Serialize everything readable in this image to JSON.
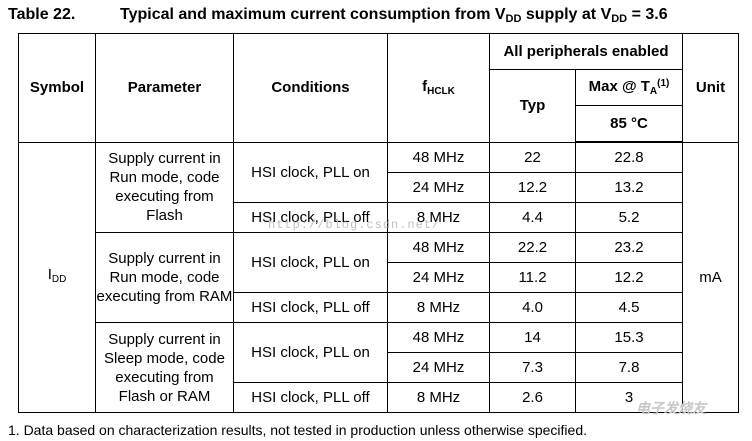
{
  "title": {
    "table_number": "Table 22.",
    "text_main": "Typical and maximum current consumption from V",
    "text_sub1": "DD",
    "text_mid": " supply at V",
    "text_sub2": "DD",
    "text_end": " = 3.6"
  },
  "headers": {
    "symbol": "Symbol",
    "parameter": "Parameter",
    "conditions": "Conditions",
    "fhclk_main": "f",
    "fhclk_sub": "HCLK",
    "all_peripherals": "All peripherals enabled",
    "typ": "Typ",
    "max_main": "Max @ T",
    "max_sub": "A",
    "max_sup": "(1)",
    "temp": "85 °C",
    "unit": "Unit"
  },
  "symbol": {
    "main": "I",
    "sub": "DD"
  },
  "unit": "mA",
  "groups": [
    {
      "parameter": "Supply current in Run mode, code executing from Flash",
      "rows": [
        {
          "conditions": "HSI clock, PLL on",
          "freq": "48 MHz",
          "typ": "22",
          "max": "22.8"
        },
        {
          "conditions": "HSI clock, PLL on",
          "freq": "24 MHz",
          "typ": "12.2",
          "max": "13.2"
        },
        {
          "conditions": "HSI clock, PLL off",
          "freq": "8 MHz",
          "typ": "4.4",
          "max": "5.2"
        }
      ]
    },
    {
      "parameter": "Supply current in Run mode, code executing from RAM",
      "rows": [
        {
          "conditions": "HSI clock, PLL on",
          "freq": "48 MHz",
          "typ": "22.2",
          "max": "23.2"
        },
        {
          "conditions": "HSI clock, PLL on",
          "freq": "24 MHz",
          "typ": "11.2",
          "max": "12.2"
        },
        {
          "conditions": "HSI clock, PLL off",
          "freq": "8 MHz",
          "typ": "4.0",
          "max": "4.5"
        }
      ]
    },
    {
      "parameter": "Supply current in Sleep mode, code executing from Flash or RAM",
      "rows": [
        {
          "conditions": "HSI clock, PLL on",
          "freq": "48 MHz",
          "typ": "14",
          "max": "15.3"
        },
        {
          "conditions": "HSI clock, PLL on",
          "freq": "24 MHz",
          "typ": "7.3",
          "max": "7.8"
        },
        {
          "conditions": "HSI clock, PLL off",
          "freq": "8 MHz",
          "typ": "2.6",
          "max": "3"
        }
      ]
    }
  ],
  "footnote": "1.  Data based on characterization results, not tested in production unless otherwise specified.",
  "watermark": "http://blog.csdn.net/",
  "logo_text": "电子发烧友"
}
